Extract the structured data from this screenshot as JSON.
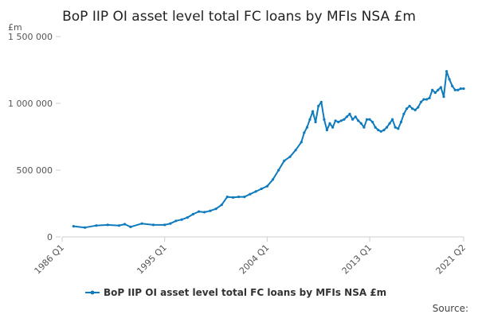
{
  "chart_data": {
    "type": "line",
    "title": "BoP IIP OI asset level total FC loans by MFIs NSA £m",
    "ylabel": "£m",
    "xlabel": "",
    "ylim": [
      0,
      1500000
    ],
    "yticks": [
      0,
      500000,
      1000000,
      1500000
    ],
    "ytick_labels": [
      "0",
      "500 000",
      "1 000 000",
      "1 500 000"
    ],
    "x_range": [
      "1986 Q1",
      "2021 Q2"
    ],
    "xticks": [
      "1986 Q1",
      "1995 Q1",
      "2004 Q1",
      "2013 Q1",
      "2021 Q2"
    ],
    "grid": false,
    "legend": "bottom",
    "series_color": "#0f7bbd",
    "series": [
      {
        "name": "BoP IIP OI asset level total FC loans by MFIs NSA £m",
        "x": [
          "1987 Q1",
          "1988 Q1",
          "1989 Q1",
          "1990 Q1",
          "1991 Q1",
          "1991 Q3",
          "1992 Q1",
          "1993 Q1",
          "1994 Q1",
          "1995 Q1",
          "1995 Q3",
          "1996 Q1",
          "1996 Q3",
          "1997 Q1",
          "1997 Q3",
          "1998 Q1",
          "1998 Q3",
          "1999 Q1",
          "1999 Q3",
          "2000 Q1",
          "2000 Q3",
          "2001 Q1",
          "2001 Q3",
          "2002 Q1",
          "2002 Q3",
          "2003 Q1",
          "2003 Q3",
          "2004 Q1",
          "2004 Q3",
          "2005 Q1",
          "2005 Q3",
          "2006 Q1",
          "2006 Q3",
          "2007 Q1",
          "2007 Q2",
          "2007 Q3",
          "2007 Q4",
          "2008 Q1",
          "2008 Q2",
          "2008 Q3",
          "2008 Q4",
          "2009 Q1",
          "2009 Q2",
          "2009 Q3",
          "2009 Q4",
          "2010 Q1",
          "2010 Q2",
          "2010 Q3",
          "2010 Q4",
          "2011 Q1",
          "2011 Q2",
          "2011 Q3",
          "2011 Q4",
          "2012 Q1",
          "2012 Q2",
          "2012 Q3",
          "2012 Q4",
          "2013 Q1",
          "2013 Q2",
          "2013 Q3",
          "2013 Q4",
          "2014 Q1",
          "2014 Q2",
          "2014 Q3",
          "2014 Q4",
          "2015 Q1",
          "2015 Q2",
          "2015 Q3",
          "2015 Q4",
          "2016 Q1",
          "2016 Q2",
          "2016 Q3",
          "2016 Q4",
          "2017 Q1",
          "2017 Q2",
          "2017 Q3",
          "2017 Q4",
          "2018 Q1",
          "2018 Q2",
          "2018 Q3",
          "2018 Q4",
          "2019 Q1",
          "2019 Q2",
          "2019 Q3",
          "2019 Q4",
          "2020 Q1",
          "2020 Q2",
          "2020 Q3",
          "2020 Q4",
          "2021 Q1",
          "2021 Q2"
        ],
        "values": [
          80000,
          70000,
          85000,
          90000,
          85000,
          95000,
          75000,
          100000,
          90000,
          90000,
          100000,
          120000,
          130000,
          145000,
          170000,
          190000,
          185000,
          195000,
          210000,
          240000,
          300000,
          295000,
          300000,
          300000,
          320000,
          340000,
          360000,
          380000,
          430000,
          500000,
          570000,
          600000,
          650000,
          710000,
          780000,
          820000,
          880000,
          940000,
          860000,
          980000,
          1010000,
          880000,
          800000,
          850000,
          820000,
          870000,
          860000,
          870000,
          880000,
          900000,
          920000,
          880000,
          900000,
          870000,
          850000,
          820000,
          880000,
          880000,
          860000,
          820000,
          800000,
          790000,
          800000,
          820000,
          850000,
          880000,
          820000,
          810000,
          860000,
          920000,
          960000,
          980000,
          960000,
          950000,
          970000,
          1010000,
          1030000,
          1030000,
          1040000,
          1100000,
          1080000,
          1100000,
          1120000,
          1050000,
          1240000,
          1180000,
          1130000,
          1100000,
          1100000,
          1110000,
          1110000
        ]
      }
    ],
    "source": "Source:"
  }
}
